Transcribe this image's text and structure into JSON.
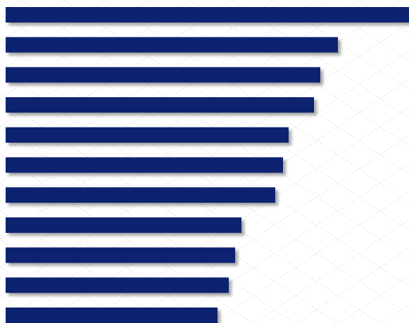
{
  "chart_data": {
    "type": "barh",
    "categories": [
      null,
      null,
      null,
      null,
      null,
      null,
      null,
      null,
      null,
      null,
      null
    ],
    "values": [
      573,
      472,
      447,
      438,
      402,
      394,
      383,
      335,
      326,
      317,
      301
    ],
    "color": "#0e2470",
    "xlim": [
      0,
      573
    ]
  }
}
